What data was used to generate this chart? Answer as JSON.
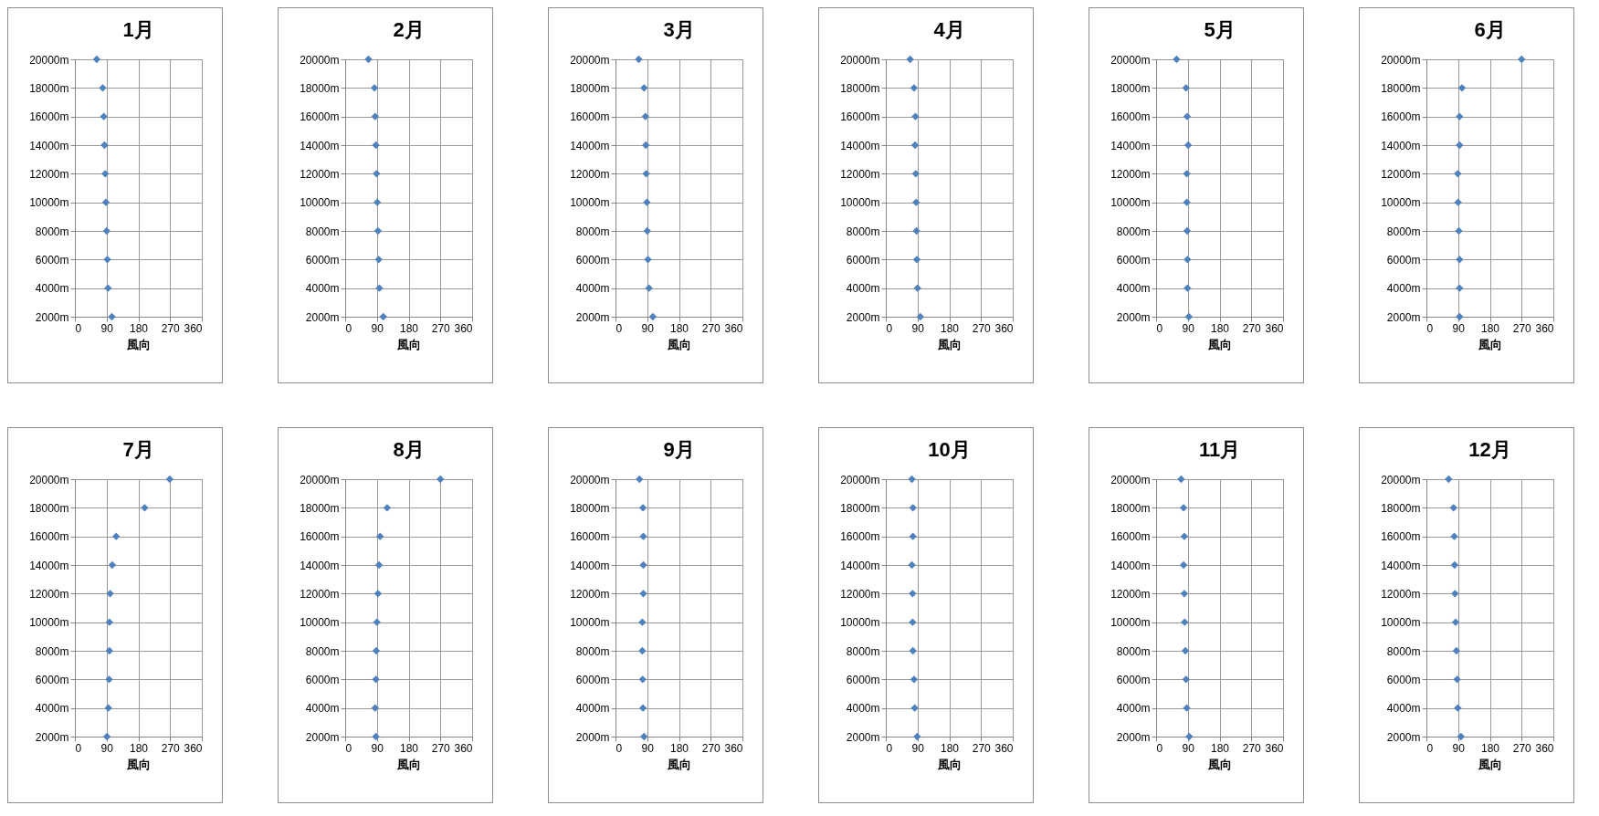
{
  "chart_data": [
    {
      "type": "scatter",
      "title": "1月",
      "xlabel": "風向",
      "color": "#4f81bd",
      "marker": "diamond",
      "grid": true,
      "xlim": [
        0,
        360
      ],
      "xticks": [
        0,
        90,
        180,
        270,
        360
      ],
      "ylim": [
        2000,
        20000
      ],
      "yticks": [
        {
          "value": 2000,
          "label": "2000m"
        },
        {
          "value": 4000,
          "label": "4000m"
        },
        {
          "value": 6000,
          "label": "6000m"
        },
        {
          "value": 8000,
          "label": "8000m"
        },
        {
          "value": 10000,
          "label": "10000m"
        },
        {
          "value": 12000,
          "label": "12000m"
        },
        {
          "value": 14000,
          "label": "14000m"
        },
        {
          "value": 16000,
          "label": "16000m"
        },
        {
          "value": 18000,
          "label": "18000m"
        },
        {
          "value": 20000,
          "label": "20000m"
        }
      ],
      "x": [
        105,
        94,
        92,
        90,
        88,
        86,
        84,
        82,
        79,
        62
      ],
      "values": [
        2000,
        4000,
        6000,
        8000,
        10000,
        12000,
        14000,
        16000,
        18000,
        20000
      ]
    },
    {
      "type": "scatter",
      "title": "2月",
      "xlabel": "風向",
      "color": "#4f81bd",
      "marker": "diamond",
      "grid": true,
      "xlim": [
        0,
        360
      ],
      "xticks": [
        0,
        90,
        180,
        270,
        360
      ],
      "ylim": [
        2000,
        20000
      ],
      "yticks": [
        {
          "value": 2000,
          "label": "2000m"
        },
        {
          "value": 4000,
          "label": "4000m"
        },
        {
          "value": 6000,
          "label": "6000m"
        },
        {
          "value": 8000,
          "label": "8000m"
        },
        {
          "value": 10000,
          "label": "10000m"
        },
        {
          "value": 12000,
          "label": "12000m"
        },
        {
          "value": 14000,
          "label": "14000m"
        },
        {
          "value": 16000,
          "label": "16000m"
        },
        {
          "value": 18000,
          "label": "18000m"
        },
        {
          "value": 20000,
          "label": "20000m"
        }
      ],
      "x": [
        108,
        97,
        95,
        93,
        91,
        89,
        87,
        85,
        83,
        66
      ],
      "values": [
        2000,
        4000,
        6000,
        8000,
        10000,
        12000,
        14000,
        16000,
        18000,
        20000
      ]
    },
    {
      "type": "scatter",
      "title": "3月",
      "xlabel": "風向",
      "color": "#4f81bd",
      "marker": "diamond",
      "grid": true,
      "xlim": [
        0,
        360
      ],
      "xticks": [
        0,
        90,
        180,
        270,
        360
      ],
      "ylim": [
        2000,
        20000
      ],
      "yticks": [
        {
          "value": 2000,
          "label": "2000m"
        },
        {
          "value": 4000,
          "label": "4000m"
        },
        {
          "value": 6000,
          "label": "6000m"
        },
        {
          "value": 8000,
          "label": "8000m"
        },
        {
          "value": 10000,
          "label": "10000m"
        },
        {
          "value": 12000,
          "label": "12000m"
        },
        {
          "value": 14000,
          "label": "14000m"
        },
        {
          "value": 16000,
          "label": "16000m"
        },
        {
          "value": 18000,
          "label": "18000m"
        },
        {
          "value": 20000,
          "label": "20000m"
        }
      ],
      "x": [
        106,
        95,
        92,
        90,
        89,
        87,
        86,
        85,
        81,
        66
      ],
      "values": [
        2000,
        4000,
        6000,
        8000,
        10000,
        12000,
        14000,
        16000,
        18000,
        20000
      ]
    },
    {
      "type": "scatter",
      "title": "4月",
      "xlabel": "風向",
      "color": "#4f81bd",
      "marker": "diamond",
      "grid": true,
      "xlim": [
        0,
        360
      ],
      "xticks": [
        0,
        90,
        180,
        270,
        360
      ],
      "ylim": [
        2000,
        20000
      ],
      "yticks": [
        {
          "value": 2000,
          "label": "2000m"
        },
        {
          "value": 4000,
          "label": "4000m"
        },
        {
          "value": 6000,
          "label": "6000m"
        },
        {
          "value": 8000,
          "label": "8000m"
        },
        {
          "value": 10000,
          "label": "10000m"
        },
        {
          "value": 12000,
          "label": "12000m"
        },
        {
          "value": 14000,
          "label": "14000m"
        },
        {
          "value": 16000,
          "label": "16000m"
        },
        {
          "value": 18000,
          "label": "18000m"
        },
        {
          "value": 20000,
          "label": "20000m"
        }
      ],
      "x": [
        98,
        90,
        88,
        87,
        86,
        85,
        83,
        84,
        80,
        69
      ],
      "values": [
        2000,
        4000,
        6000,
        8000,
        10000,
        12000,
        14000,
        16000,
        18000,
        20000
      ]
    },
    {
      "type": "scatter",
      "title": "5月",
      "xlabel": "風向",
      "color": "#4f81bd",
      "marker": "diamond",
      "grid": true,
      "xlim": [
        0,
        360
      ],
      "xticks": [
        0,
        90,
        180,
        270,
        360
      ],
      "ylim": [
        2000,
        20000
      ],
      "yticks": [
        {
          "value": 2000,
          "label": "2000m"
        },
        {
          "value": 4000,
          "label": "4000m"
        },
        {
          "value": 6000,
          "label": "6000m"
        },
        {
          "value": 8000,
          "label": "8000m"
        },
        {
          "value": 10000,
          "label": "10000m"
        },
        {
          "value": 12000,
          "label": "12000m"
        },
        {
          "value": 14000,
          "label": "14000m"
        },
        {
          "value": 16000,
          "label": "16000m"
        },
        {
          "value": 18000,
          "label": "18000m"
        },
        {
          "value": 20000,
          "label": "20000m"
        }
      ],
      "x": [
        93,
        89,
        89,
        88,
        87,
        87,
        91,
        88,
        85,
        58
      ],
      "values": [
        2000,
        4000,
        6000,
        8000,
        10000,
        12000,
        14000,
        16000,
        18000,
        20000
      ]
    },
    {
      "type": "scatter",
      "title": "6月",
      "xlabel": "風向",
      "color": "#4f81bd",
      "marker": "diamond",
      "grid": true,
      "xlim": [
        0,
        360
      ],
      "xticks": [
        0,
        90,
        180,
        270,
        360
      ],
      "ylim": [
        2000,
        20000
      ],
      "yticks": [
        {
          "value": 2000,
          "label": "2000m"
        },
        {
          "value": 4000,
          "label": "4000m"
        },
        {
          "value": 6000,
          "label": "6000m"
        },
        {
          "value": 8000,
          "label": "8000m"
        },
        {
          "value": 10000,
          "label": "10000m"
        },
        {
          "value": 12000,
          "label": "12000m"
        },
        {
          "value": 14000,
          "label": "14000m"
        },
        {
          "value": 16000,
          "label": "16000m"
        },
        {
          "value": 18000,
          "label": "18000m"
        },
        {
          "value": 20000,
          "label": "20000m"
        }
      ],
      "x": [
        94,
        94,
        94,
        92,
        90,
        89,
        94,
        94,
        101,
        270
      ],
      "values": [
        2000,
        4000,
        6000,
        8000,
        10000,
        12000,
        14000,
        16000,
        18000,
        20000
      ]
    },
    {
      "type": "scatter",
      "title": "7月",
      "xlabel": "風向",
      "color": "#4f81bd",
      "marker": "diamond",
      "grid": true,
      "xlim": [
        0,
        360
      ],
      "xticks": [
        0,
        90,
        180,
        270,
        360
      ],
      "ylim": [
        2000,
        20000
      ],
      "yticks": [
        {
          "value": 2000,
          "label": "2000m"
        },
        {
          "value": 4000,
          "label": "4000m"
        },
        {
          "value": 6000,
          "label": "6000m"
        },
        {
          "value": 8000,
          "label": "8000m"
        },
        {
          "value": 10000,
          "label": "10000m"
        },
        {
          "value": 12000,
          "label": "12000m"
        },
        {
          "value": 14000,
          "label": "14000m"
        },
        {
          "value": 16000,
          "label": "16000m"
        },
        {
          "value": 18000,
          "label": "18000m"
        },
        {
          "value": 20000,
          "label": "20000m"
        }
      ],
      "x": [
        91,
        95,
        97,
        98,
        98,
        100,
        106,
        117,
        198,
        269
      ],
      "values": [
        2000,
        4000,
        6000,
        8000,
        10000,
        12000,
        14000,
        16000,
        18000,
        20000
      ]
    },
    {
      "type": "scatter",
      "title": "8月",
      "xlabel": "風向",
      "color": "#4f81bd",
      "marker": "diamond",
      "grid": true,
      "xlim": [
        0,
        360
      ],
      "xticks": [
        0,
        90,
        180,
        270,
        360
      ],
      "ylim": [
        2000,
        20000
      ],
      "yticks": [
        {
          "value": 2000,
          "label": "2000m"
        },
        {
          "value": 4000,
          "label": "4000m"
        },
        {
          "value": 6000,
          "label": "6000m"
        },
        {
          "value": 8000,
          "label": "8000m"
        },
        {
          "value": 10000,
          "label": "10000m"
        },
        {
          "value": 12000,
          "label": "12000m"
        },
        {
          "value": 14000,
          "label": "14000m"
        },
        {
          "value": 16000,
          "label": "16000m"
        },
        {
          "value": 18000,
          "label": "18000m"
        },
        {
          "value": 20000,
          "label": "20000m"
        }
      ],
      "x": [
        87,
        85,
        87,
        88,
        90,
        93,
        96,
        99,
        119,
        270
      ],
      "values": [
        2000,
        4000,
        6000,
        8000,
        10000,
        12000,
        14000,
        16000,
        18000,
        20000
      ]
    },
    {
      "type": "scatter",
      "title": "9月",
      "xlabel": "風向",
      "color": "#4f81bd",
      "marker": "diamond",
      "grid": true,
      "xlim": [
        0,
        360
      ],
      "xticks": [
        0,
        90,
        180,
        270,
        360
      ],
      "ylim": [
        2000,
        20000
      ],
      "yticks": [
        {
          "value": 2000,
          "label": "2000m"
        },
        {
          "value": 4000,
          "label": "4000m"
        },
        {
          "value": 6000,
          "label": "6000m"
        },
        {
          "value": 8000,
          "label": "8000m"
        },
        {
          "value": 10000,
          "label": "10000m"
        },
        {
          "value": 12000,
          "label": "12000m"
        },
        {
          "value": 14000,
          "label": "14000m"
        },
        {
          "value": 16000,
          "label": "16000m"
        },
        {
          "value": 18000,
          "label": "18000m"
        },
        {
          "value": 20000,
          "label": "20000m"
        }
      ],
      "x": [
        81,
        78,
        77,
        76,
        76,
        79,
        79,
        79,
        78,
        68
      ],
      "values": [
        2000,
        4000,
        6000,
        8000,
        10000,
        12000,
        14000,
        16000,
        18000,
        20000
      ]
    },
    {
      "type": "scatter",
      "title": "10月",
      "xlabel": "風向",
      "color": "#4f81bd",
      "marker": "diamond",
      "grid": true,
      "xlim": [
        0,
        360
      ],
      "xticks": [
        0,
        90,
        180,
        270,
        360
      ],
      "ylim": [
        2000,
        20000
      ],
      "yticks": [
        {
          "value": 2000,
          "label": "2000m"
        },
        {
          "value": 4000,
          "label": "4000m"
        },
        {
          "value": 6000,
          "label": "6000m"
        },
        {
          "value": 8000,
          "label": "8000m"
        },
        {
          "value": 10000,
          "label": "10000m"
        },
        {
          "value": 12000,
          "label": "12000m"
        },
        {
          "value": 14000,
          "label": "14000m"
        },
        {
          "value": 16000,
          "label": "16000m"
        },
        {
          "value": 18000,
          "label": "18000m"
        },
        {
          "value": 20000,
          "label": "20000m"
        }
      ],
      "x": [
        89,
        82,
        80,
        77,
        76,
        76,
        74,
        77,
        77,
        74
      ],
      "values": [
        2000,
        4000,
        6000,
        8000,
        10000,
        12000,
        14000,
        16000,
        18000,
        20000
      ]
    },
    {
      "type": "scatter",
      "title": "11月",
      "xlabel": "風向",
      "color": "#4f81bd",
      "marker": "diamond",
      "grid": true,
      "xlim": [
        0,
        360
      ],
      "xticks": [
        0,
        90,
        180,
        270,
        360
      ],
      "ylim": [
        2000,
        20000
      ],
      "yticks": [
        {
          "value": 2000,
          "label": "2000m"
        },
        {
          "value": 4000,
          "label": "4000m"
        },
        {
          "value": 6000,
          "label": "6000m"
        },
        {
          "value": 8000,
          "label": "8000m"
        },
        {
          "value": 10000,
          "label": "10000m"
        },
        {
          "value": 12000,
          "label": "12000m"
        },
        {
          "value": 14000,
          "label": "14000m"
        },
        {
          "value": 16000,
          "label": "16000m"
        },
        {
          "value": 18000,
          "label": "18000m"
        },
        {
          "value": 20000,
          "label": "20000m"
        }
      ],
      "x": [
        94,
        87,
        85,
        83,
        81,
        80,
        78,
        80,
        78,
        71
      ],
      "values": [
        2000,
        4000,
        6000,
        8000,
        10000,
        12000,
        14000,
        16000,
        18000,
        20000
      ]
    },
    {
      "type": "scatter",
      "title": "12月",
      "xlabel": "風向",
      "color": "#4f81bd",
      "marker": "diamond",
      "grid": true,
      "xlim": [
        0,
        360
      ],
      "xticks": [
        0,
        90,
        180,
        270,
        360
      ],
      "ylim": [
        2000,
        20000
      ],
      "yticks": [
        {
          "value": 2000,
          "label": "2000m"
        },
        {
          "value": 4000,
          "label": "4000m"
        },
        {
          "value": 6000,
          "label": "6000m"
        },
        {
          "value": 8000,
          "label": "8000m"
        },
        {
          "value": 10000,
          "label": "10000m"
        },
        {
          "value": 12000,
          "label": "12000m"
        },
        {
          "value": 14000,
          "label": "14000m"
        },
        {
          "value": 16000,
          "label": "16000m"
        },
        {
          "value": 18000,
          "label": "18000m"
        },
        {
          "value": 20000,
          "label": "20000m"
        }
      ],
      "x": [
        98,
        89,
        87,
        85,
        83,
        81,
        80,
        79,
        77,
        63
      ],
      "values": [
        2000,
        4000,
        6000,
        8000,
        10000,
        12000,
        14000,
        16000,
        18000,
        20000
      ]
    }
  ]
}
